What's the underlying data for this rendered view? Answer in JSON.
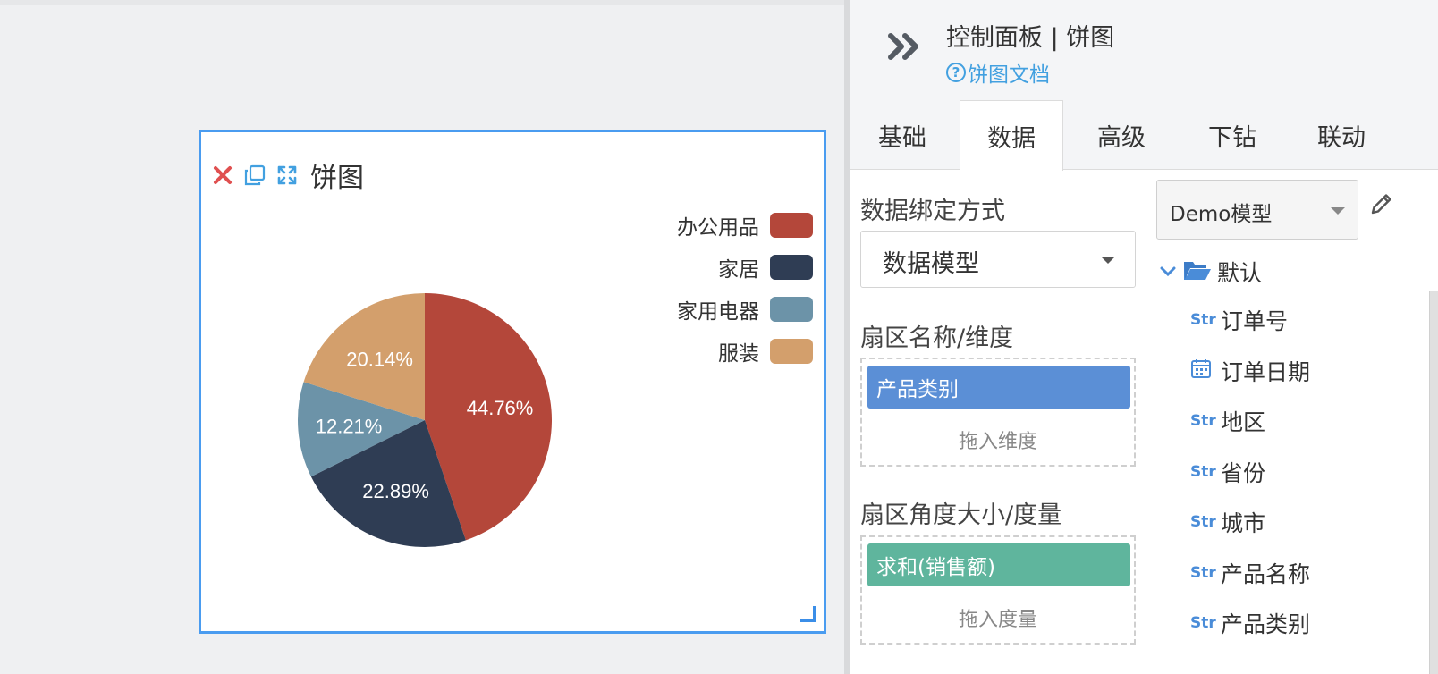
{
  "canvas": {
    "widget": {
      "title": "饼图",
      "icons": [
        "close-icon",
        "copy-icon",
        "expand-icon"
      ],
      "legend": [
        {
          "label": "办公用品",
          "color": "#b4473a"
        },
        {
          "label": "家居",
          "color": "#2f3d54"
        },
        {
          "label": "家用电器",
          "color": "#6c93a8"
        },
        {
          "label": "服装",
          "color": "#d39f6c"
        }
      ]
    }
  },
  "chart_data": {
    "type": "pie",
    "categories": [
      "办公用品",
      "家居",
      "家用电器",
      "服装"
    ],
    "values": [
      44.76,
      22.89,
      12.21,
      20.14
    ],
    "labels": [
      "44.76%",
      "22.89%",
      "12.21%",
      "20.14%"
    ],
    "colors": [
      "#b4473a",
      "#2f3d54",
      "#6c93a8",
      "#d39f6c"
    ],
    "legend_position": "top-right"
  },
  "panel": {
    "title": "控制面板 | 饼图",
    "doc_link": "饼图文档",
    "tabs": [
      {
        "label": "基础",
        "active": false
      },
      {
        "label": "数据",
        "active": true
      },
      {
        "label": "高级",
        "active": false
      },
      {
        "label": "下钻",
        "active": false
      },
      {
        "label": "联动",
        "active": false
      }
    ],
    "binding_label": "数据绑定方式",
    "binding_value": "数据模型",
    "dimension_label": "扇区名称/维度",
    "dimension_chip": "产品类别",
    "dimension_hint": "拖入维度",
    "dimension_color": "#5b8fd6",
    "measure_label": "扇区角度大小/度量",
    "measure_chip": "求和(销售额)",
    "measure_hint": "拖入度量",
    "measure_color": "#5fb59d",
    "model_value": "Demo模型",
    "tree_root": "默认",
    "fields": [
      {
        "type": "Str",
        "label": "订单号"
      },
      {
        "type": "date",
        "label": "订单日期"
      },
      {
        "type": "Str",
        "label": "地区"
      },
      {
        "type": "Str",
        "label": "省份"
      },
      {
        "type": "Str",
        "label": "城市"
      },
      {
        "type": "Str",
        "label": "产品名称"
      },
      {
        "type": "Str",
        "label": "产品类别"
      }
    ]
  }
}
